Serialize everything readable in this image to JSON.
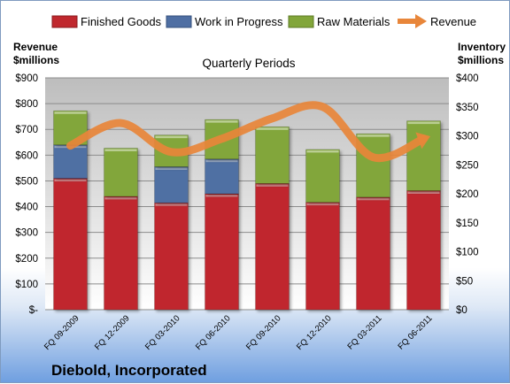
{
  "chart_data": {
    "type": "bar",
    "stacked": true,
    "title": "Quarterly Periods",
    "footer": "Diebold, Incorporated",
    "categories": [
      "FQ 09-2009",
      "FQ 12-2009",
      "FQ 03-2010",
      "FQ 06-2010",
      "FQ 09-2010",
      "FQ 12-2010",
      "FQ 03-2011",
      "FQ 06-2011"
    ],
    "series": [
      {
        "name": "Finished Goods",
        "axis": "left",
        "color": "#c0282e",
        "values": [
          510,
          440,
          415,
          450,
          490,
          417,
          437,
          462
        ]
      },
      {
        "name": "Work in Progress",
        "axis": "left",
        "color": "#4f6fa3",
        "values": [
          130,
          0,
          140,
          135,
          0,
          0,
          0,
          0
        ]
      },
      {
        "name": "Raw Materials",
        "axis": "left",
        "color": "#82a63a",
        "values": [
          132,
          187,
          123,
          153,
          220,
          205,
          246,
          271
        ]
      },
      {
        "name": "Revenue",
        "axis": "right",
        "type": "line",
        "color": "#e8863a",
        "values": [
          283,
          322,
          272,
          295,
          330,
          350,
          263,
          295
        ]
      }
    ],
    "left_axis": {
      "label_line1": "Revenue",
      "label_line2": "$millions",
      "ylim": [
        0,
        900
      ],
      "ticks": [
        0,
        100,
        200,
        300,
        400,
        500,
        600,
        700,
        800,
        900
      ],
      "tick_labels": [
        "$-",
        "$100",
        "$200",
        "$300",
        "$400",
        "$500",
        "$600",
        "$700",
        "$800",
        "$900"
      ]
    },
    "right_axis": {
      "label_line1": "Inventory",
      "label_line2": "$millions",
      "ylim": [
        0,
        400
      ],
      "ticks": [
        0,
        50,
        100,
        150,
        200,
        250,
        300,
        350,
        400
      ],
      "tick_labels": [
        "$0",
        "$50",
        "$100",
        "$150",
        "$200",
        "$250",
        "$300",
        "$350",
        "$400"
      ]
    },
    "grid": true,
    "legend_position": "top"
  }
}
